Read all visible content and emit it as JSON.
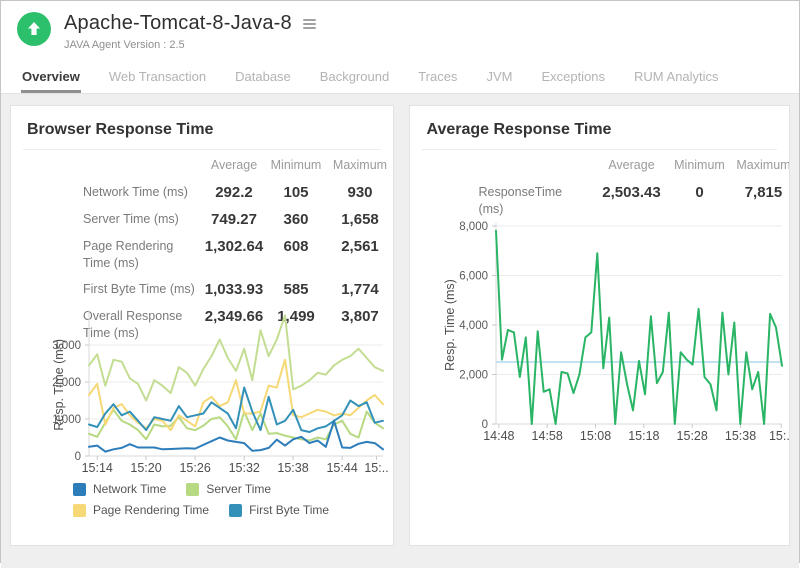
{
  "header": {
    "title": "Apache-Tomcat-8-Java-8",
    "subtitle": "JAVA Agent Version : 2.5",
    "status_color": "#2dc06c",
    "status_icon": "up-arrow"
  },
  "tabs": [
    {
      "label": "Overview",
      "active": true
    },
    {
      "label": "Web Transaction",
      "active": false
    },
    {
      "label": "Database",
      "active": false
    },
    {
      "label": "Background",
      "active": false
    },
    {
      "label": "Traces",
      "active": false
    },
    {
      "label": "JVM",
      "active": false
    },
    {
      "label": "Exceptions",
      "active": false
    },
    {
      "label": "RUM Analytics",
      "active": false
    }
  ],
  "panels": [
    {
      "title": "Browser Response Time",
      "table": {
        "headers": [
          "Average",
          "Minimum",
          "Maximum"
        ],
        "rows": [
          {
            "label": "Network Time (ms)",
            "average": "292.2",
            "minimum": "105",
            "maximum": "930"
          },
          {
            "label": "Server Time (ms)",
            "average": "749.27",
            "minimum": "360",
            "maximum": "1,658"
          },
          {
            "label": "Page Rendering Time (ms)",
            "average": "1,302.64",
            "minimum": "608",
            "maximum": "2,561"
          },
          {
            "label": "First Byte Time (ms)",
            "average": "1,033.93",
            "minimum": "585",
            "maximum": "1,774"
          },
          {
            "label": "Overall Response Time (ms)",
            "average": "2,349.66",
            "minimum": "1,499",
            "maximum": "3,807"
          }
        ]
      },
      "legend": [
        {
          "label": "Network Time",
          "color": "#2d7dbb"
        },
        {
          "label": "Server Time",
          "color": "#b7d982"
        },
        {
          "label": "Page Rendering Time",
          "color": "#f6d876"
        },
        {
          "label": "First Byte Time",
          "color": "#3391b9"
        }
      ]
    },
    {
      "title": "Average Response Time",
      "table": {
        "headers": [
          "Average",
          "Minimum",
          "Maximum"
        ],
        "rows": [
          {
            "label": "ResponseTime (ms)",
            "average": "2,503.43",
            "minimum": "0",
            "maximum": "7,815"
          }
        ]
      }
    }
  ],
  "chart_data": [
    {
      "type": "line",
      "title": "Browser Response Time",
      "xlabel": "",
      "ylabel": "Resp. Time (ms)",
      "ylim": [
        0,
        3850
      ],
      "yticks": [
        0,
        1000,
        2000,
        3000
      ],
      "grid": true,
      "legend_position": "bottom-left",
      "xticks": [
        {
          "label": "15:14",
          "f": 0.028
        },
        {
          "label": "15:20",
          "f": 0.194
        },
        {
          "label": "15:26",
          "f": 0.361
        },
        {
          "label": "15:32",
          "f": 0.528
        },
        {
          "label": "15:38",
          "f": 0.694
        },
        {
          "label": "15:44",
          "f": 0.861
        },
        {
          "label": "15:..",
          "f": 0.978
        }
      ],
      "series": [
        {
          "name": "Overall Response Time",
          "color": "#c3dd92",
          "values": [
            2450,
            2750,
            1900,
            2600,
            2550,
            2100,
            1950,
            1500,
            2050,
            1900,
            1700,
            2400,
            2250,
            1900,
            2350,
            2700,
            3150,
            2650,
            2300,
            2900,
            2050,
            3400,
            2700,
            3150,
            3800,
            1800,
            1900,
            2050,
            2250,
            2200,
            2450,
            2600,
            2700,
            2900,
            2650,
            2400,
            2300
          ]
        },
        {
          "name": "Server Time",
          "color": "#b7d982",
          "values": [
            600,
            520,
            900,
            1250,
            950,
            850,
            700,
            450,
            850,
            800,
            820,
            1050,
            750,
            700,
            820,
            1000,
            1050,
            800,
            450,
            1200,
            700,
            1150,
            600,
            620,
            550,
            500,
            450,
            420,
            500,
            450,
            850,
            950,
            600,
            500,
            1200,
            900,
            750
          ]
        },
        {
          "name": "Page Rendering Time",
          "color": "#f6d876",
          "values": [
            1650,
            1950,
            850,
            1300,
            1400,
            1100,
            900,
            750,
            1000,
            950,
            700,
            1100,
            950,
            800,
            1450,
            1600,
            1350,
            1450,
            2050,
            1150,
            1150,
            1200,
            1900,
            1850,
            2600,
            1100,
            1050,
            1150,
            1250,
            1200,
            1100,
            1150,
            1100,
            1300,
            1500,
            1650,
            1400
          ]
        },
        {
          "name": "First Byte Time",
          "color": "#3391b9",
          "values": [
            850,
            780,
            1150,
            1400,
            1100,
            1200,
            950,
            700,
            1050,
            1000,
            950,
            1350,
            1050,
            1100,
            1150,
            1450,
            1300,
            1150,
            750,
            1850,
            1200,
            700,
            1600,
            850,
            950,
            1250,
            700,
            650,
            750,
            800,
            950,
            1100,
            1500,
            1350,
            1450,
            900,
            950
          ]
        },
        {
          "name": "Network Time",
          "color": "#2d7dbb",
          "values": [
            250,
            280,
            120,
            180,
            220,
            320,
            230,
            230,
            230,
            180,
            190,
            200,
            210,
            200,
            300,
            400,
            500,
            420,
            380,
            350,
            140,
            160,
            220,
            440,
            280,
            450,
            520,
            350,
            420,
            250,
            950,
            230,
            220,
            330,
            380,
            350,
            180
          ]
        }
      ]
    },
    {
      "type": "line",
      "title": "Average Response Time",
      "xlabel": "",
      "ylabel": "Resp. Time (ms)",
      "ylim": [
        0,
        8000
      ],
      "yticks": [
        0,
        2000,
        4000,
        6000,
        8000
      ],
      "grid": true,
      "reference_line": {
        "value": 2503.43,
        "color": "#aed9ee"
      },
      "xticks": [
        {
          "label": "14:48",
          "f": 0.01
        },
        {
          "label": "14:58",
          "f": 0.179
        },
        {
          "label": "15:08",
          "f": 0.348
        },
        {
          "label": "15:18",
          "f": 0.517
        },
        {
          "label": "15:28",
          "f": 0.686
        },
        {
          "label": "15:38",
          "f": 0.855
        },
        {
          "label": "15:..",
          "f": 0.997
        }
      ],
      "series": [
        {
          "name": "ResponseTime",
          "color": "#29b565",
          "values": [
            7800,
            2600,
            3800,
            3700,
            1900,
            3500,
            0,
            3750,
            1300,
            1400,
            0,
            2100,
            2050,
            1250,
            2000,
            3500,
            3700,
            6900,
            2250,
            4300,
            0,
            2900,
            1600,
            550,
            2550,
            1200,
            4350,
            1650,
            2100,
            4500,
            0,
            2900,
            2600,
            2400,
            4650,
            1900,
            1600,
            550,
            4500,
            2000,
            4100,
            0,
            2900,
            1400,
            2100,
            0,
            4450,
            3900,
            2350
          ]
        }
      ]
    }
  ]
}
